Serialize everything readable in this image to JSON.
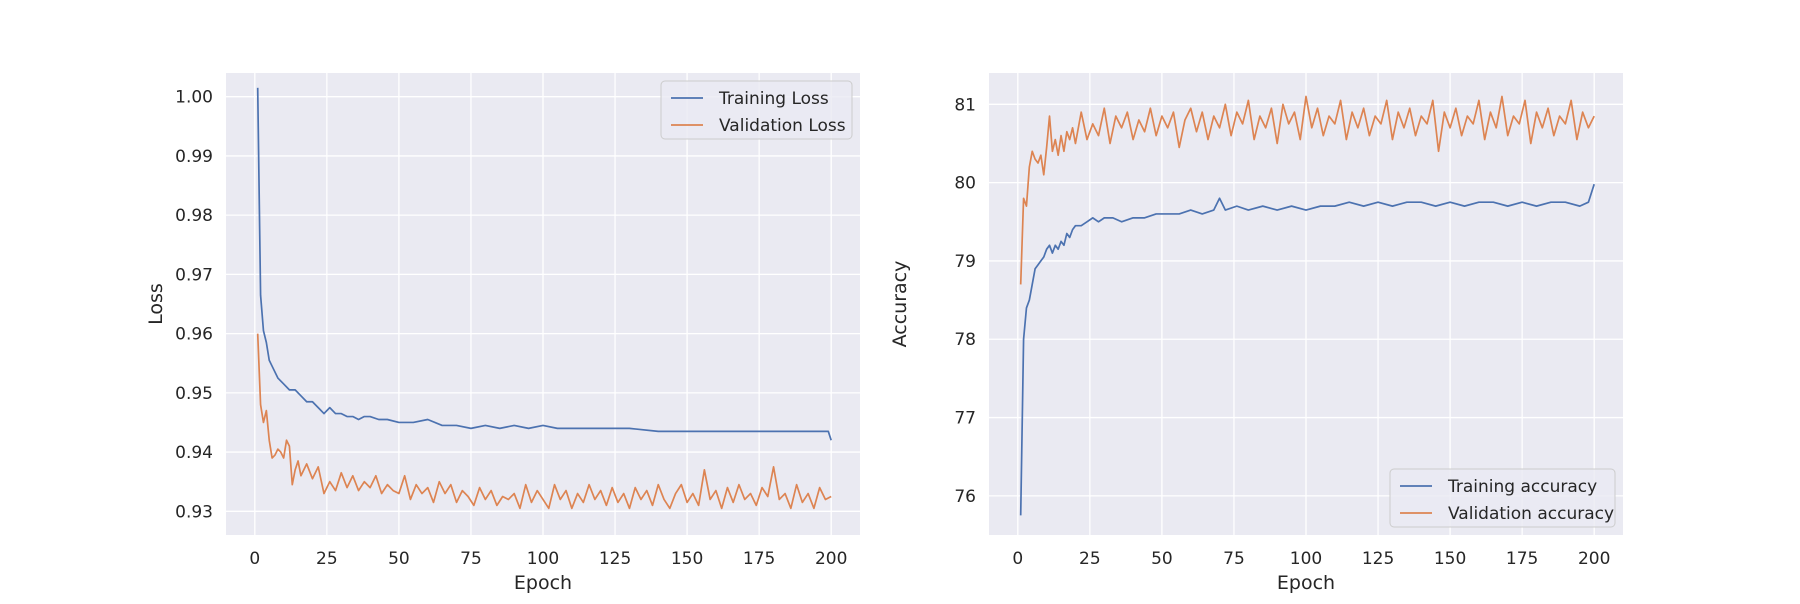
{
  "chart_data": [
    {
      "type": "line",
      "xlabel": "Epoch",
      "ylabel": "Loss",
      "xlim": [
        -10,
        210
      ],
      "ylim": [
        0.926,
        1.004
      ],
      "xticks": [
        0,
        25,
        50,
        75,
        100,
        125,
        150,
        175,
        200
      ],
      "yticks": [
        0.93,
        0.94,
        0.95,
        0.96,
        0.97,
        0.98,
        0.99,
        1.0
      ],
      "ytick_labels": [
        "0.93",
        "0.94",
        "0.95",
        "0.96",
        "0.97",
        "0.98",
        "0.99",
        "1.00"
      ],
      "grid": true,
      "legend_position": "top-right",
      "series": [
        {
          "name": "Training Loss",
          "color": "#4c72b0",
          "x": [
            1,
            2,
            3,
            4,
            5,
            6,
            8,
            10,
            12,
            14,
            16,
            18,
            20,
            22,
            24,
            26,
            28,
            30,
            32,
            34,
            36,
            38,
            40,
            43,
            46,
            50,
            55,
            60,
            65,
            70,
            75,
            80,
            85,
            90,
            95,
            100,
            105,
            110,
            120,
            130,
            140,
            150,
            160,
            170,
            180,
            190,
            199,
            200
          ],
          "y": [
            1.0015,
            0.9665,
            0.9605,
            0.9585,
            0.9555,
            0.9545,
            0.9525,
            0.9515,
            0.9505,
            0.9505,
            0.9495,
            0.9485,
            0.9485,
            0.9475,
            0.9465,
            0.9475,
            0.9465,
            0.9465,
            0.946,
            0.946,
            0.9455,
            0.946,
            0.946,
            0.9455,
            0.9455,
            0.945,
            0.945,
            0.9455,
            0.9445,
            0.9445,
            0.944,
            0.9445,
            0.944,
            0.9445,
            0.944,
            0.9445,
            0.944,
            0.944,
            0.944,
            0.944,
            0.9435,
            0.9435,
            0.9435,
            0.9435,
            0.9435,
            0.9435,
            0.9435,
            0.942
          ]
        },
        {
          "name": "Validation Loss",
          "color": "#dd8452",
          "x": [
            1,
            2,
            3,
            4,
            5,
            6,
            7,
            8,
            9,
            10,
            11,
            12,
            13,
            14,
            15,
            16,
            18,
            20,
            22,
            24,
            26,
            28,
            30,
            32,
            34,
            36,
            38,
            40,
            42,
            44,
            46,
            48,
            50,
            52,
            54,
            56,
            58,
            60,
            62,
            64,
            66,
            68,
            70,
            72,
            74,
            76,
            78,
            80,
            82,
            84,
            86,
            88,
            90,
            92,
            94,
            96,
            98,
            100,
            102,
            104,
            106,
            108,
            110,
            112,
            114,
            116,
            118,
            120,
            122,
            124,
            126,
            128,
            130,
            132,
            134,
            136,
            138,
            140,
            142,
            144,
            146,
            148,
            150,
            152,
            154,
            156,
            158,
            160,
            162,
            164,
            166,
            168,
            170,
            172,
            174,
            176,
            178,
            180,
            182,
            184,
            186,
            188,
            190,
            192,
            194,
            196,
            198,
            200
          ],
          "y": [
            0.96,
            0.948,
            0.945,
            0.947,
            0.942,
            0.939,
            0.9395,
            0.9405,
            0.94,
            0.939,
            0.942,
            0.941,
            0.9345,
            0.937,
            0.9385,
            0.936,
            0.938,
            0.9355,
            0.9375,
            0.933,
            0.935,
            0.9335,
            0.9365,
            0.934,
            0.936,
            0.9335,
            0.935,
            0.934,
            0.936,
            0.933,
            0.9345,
            0.9335,
            0.933,
            0.936,
            0.932,
            0.9345,
            0.933,
            0.934,
            0.9315,
            0.935,
            0.933,
            0.9345,
            0.9315,
            0.9335,
            0.9325,
            0.931,
            0.934,
            0.932,
            0.9335,
            0.931,
            0.9325,
            0.932,
            0.933,
            0.9305,
            0.9345,
            0.9315,
            0.9335,
            0.932,
            0.9305,
            0.9345,
            0.932,
            0.9335,
            0.9305,
            0.933,
            0.9315,
            0.9345,
            0.932,
            0.9335,
            0.931,
            0.934,
            0.9315,
            0.933,
            0.9305,
            0.934,
            0.932,
            0.9335,
            0.931,
            0.9345,
            0.932,
            0.9305,
            0.933,
            0.9345,
            0.9315,
            0.933,
            0.931,
            0.937,
            0.932,
            0.9335,
            0.9305,
            0.934,
            0.9315,
            0.9345,
            0.932,
            0.933,
            0.931,
            0.934,
            0.9325,
            0.9375,
            0.932,
            0.933,
            0.9305,
            0.9345,
            0.9315,
            0.933,
            0.9305,
            0.934,
            0.932,
            0.9325
          ]
        }
      ]
    },
    {
      "type": "line",
      "xlabel": "Epoch",
      "ylabel": "Accuracy",
      "xlim": [
        -10,
        210
      ],
      "ylim": [
        75.5,
        81.4
      ],
      "xticks": [
        0,
        25,
        50,
        75,
        100,
        125,
        150,
        175,
        200
      ],
      "yticks": [
        76,
        77,
        78,
        79,
        80,
        81
      ],
      "ytick_labels": [
        "76",
        "77",
        "78",
        "79",
        "80",
        "81"
      ],
      "grid": true,
      "legend_position": "bottom-right",
      "series": [
        {
          "name": "Training accuracy",
          "color": "#4c72b0",
          "x": [
            1,
            2,
            3,
            4,
            5,
            6,
            7,
            8,
            9,
            10,
            11,
            12,
            13,
            14,
            15,
            16,
            17,
            18,
            19,
            20,
            22,
            24,
            26,
            28,
            30,
            33,
            36,
            40,
            44,
            48,
            52,
            56,
            60,
            64,
            68,
            70,
            72,
            76,
            80,
            85,
            90,
            95,
            100,
            105,
            110,
            115,
            120,
            125,
            130,
            135,
            140,
            145,
            150,
            155,
            160,
            165,
            170,
            175,
            180,
            185,
            190,
            195,
            198,
            200
          ],
          "y": [
            75.75,
            78.0,
            78.4,
            78.5,
            78.7,
            78.9,
            78.95,
            79.0,
            79.05,
            79.15,
            79.2,
            79.1,
            79.2,
            79.15,
            79.25,
            79.2,
            79.35,
            79.3,
            79.4,
            79.45,
            79.45,
            79.5,
            79.55,
            79.5,
            79.55,
            79.55,
            79.5,
            79.55,
            79.55,
            79.6,
            79.6,
            79.6,
            79.65,
            79.6,
            79.65,
            79.8,
            79.65,
            79.7,
            79.65,
            79.7,
            79.65,
            79.7,
            79.65,
            79.7,
            79.7,
            79.75,
            79.7,
            79.75,
            79.7,
            79.75,
            79.75,
            79.7,
            79.75,
            79.7,
            79.75,
            79.75,
            79.7,
            79.75,
            79.7,
            79.75,
            79.75,
            79.7,
            79.75,
            79.98
          ]
        },
        {
          "name": "Validation accuracy",
          "color": "#dd8452",
          "x": [
            1,
            2,
            3,
            4,
            5,
            6,
            7,
            8,
            9,
            10,
            11,
            12,
            13,
            14,
            15,
            16,
            17,
            18,
            19,
            20,
            22,
            24,
            26,
            28,
            30,
            32,
            34,
            36,
            38,
            40,
            42,
            44,
            46,
            48,
            50,
            52,
            54,
            56,
            58,
            60,
            62,
            64,
            66,
            68,
            70,
            72,
            74,
            76,
            78,
            80,
            82,
            84,
            86,
            88,
            90,
            92,
            94,
            96,
            98,
            100,
            102,
            104,
            106,
            108,
            110,
            112,
            114,
            116,
            118,
            120,
            122,
            124,
            126,
            128,
            130,
            132,
            134,
            136,
            138,
            140,
            142,
            144,
            146,
            148,
            150,
            152,
            154,
            156,
            158,
            160,
            162,
            164,
            166,
            168,
            170,
            172,
            174,
            176,
            178,
            180,
            182,
            184,
            186,
            188,
            190,
            192,
            194,
            196,
            198,
            200
          ],
          "y": [
            78.7,
            79.8,
            79.7,
            80.2,
            80.4,
            80.3,
            80.25,
            80.35,
            80.1,
            80.45,
            80.85,
            80.4,
            80.55,
            80.35,
            80.6,
            80.4,
            80.65,
            80.55,
            80.7,
            80.5,
            80.9,
            80.55,
            80.75,
            80.6,
            80.95,
            80.5,
            80.85,
            80.7,
            80.9,
            80.55,
            80.8,
            80.65,
            80.95,
            80.6,
            80.85,
            80.7,
            80.9,
            80.45,
            80.8,
            80.95,
            80.65,
            80.9,
            80.55,
            80.85,
            80.7,
            81.0,
            80.6,
            80.9,
            80.75,
            81.05,
            80.55,
            80.85,
            80.7,
            80.95,
            80.5,
            81.0,
            80.75,
            80.9,
            80.55,
            81.1,
            80.7,
            80.95,
            80.6,
            80.85,
            80.75,
            81.05,
            80.55,
            80.9,
            80.7,
            80.95,
            80.6,
            80.85,
            80.75,
            81.05,
            80.55,
            80.9,
            80.7,
            80.95,
            80.6,
            80.85,
            80.75,
            81.05,
            80.4,
            80.9,
            80.7,
            80.95,
            80.6,
            80.85,
            80.75,
            81.05,
            80.55,
            80.9,
            80.7,
            81.1,
            80.6,
            80.85,
            80.75,
            81.05,
            80.5,
            80.9,
            80.7,
            80.95,
            80.6,
            80.85,
            80.75,
            81.05,
            80.55,
            80.9,
            80.7,
            80.85
          ]
        }
      ]
    }
  ]
}
